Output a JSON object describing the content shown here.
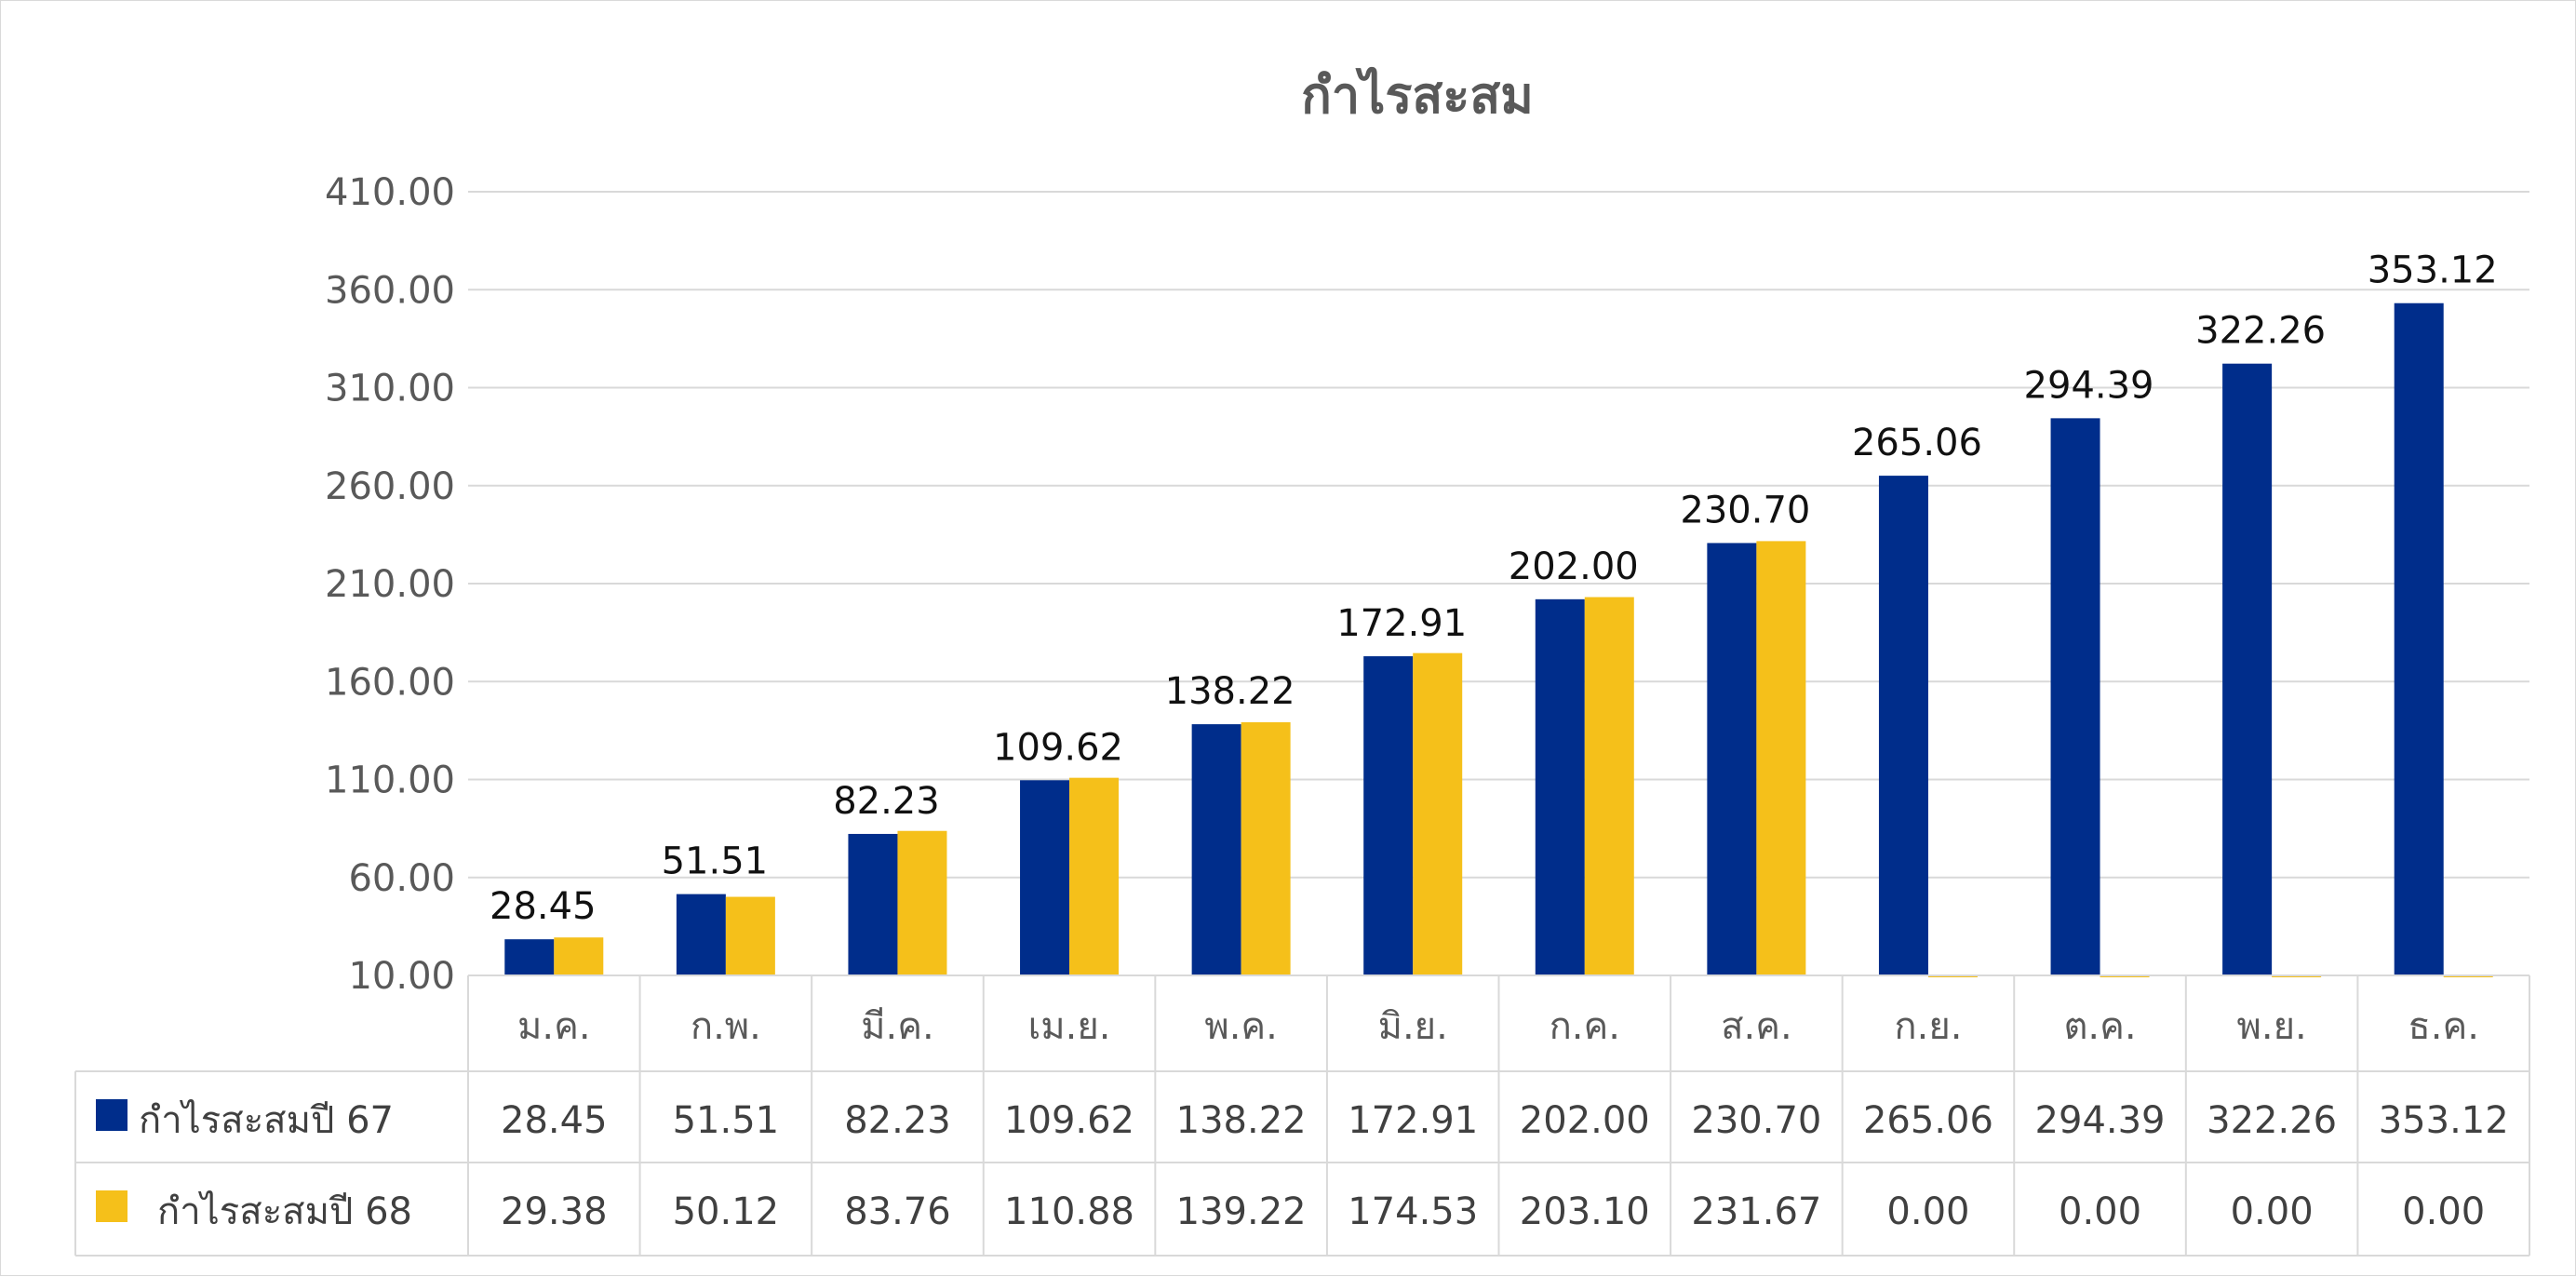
{
  "chart_data": {
    "type": "bar",
    "title": "กำไรสะสม",
    "categories": [
      "ม.ค.",
      "ก.พ.",
      "มี.ค.",
      "เม.ย.",
      "พ.ค.",
      "มิ.ย.",
      "ก.ค.",
      "ส.ค.",
      "ก.ย.",
      "ต.ค.",
      "พ.ย.",
      "ธ.ค."
    ],
    "ylim": [
      10,
      410
    ],
    "yticks": [
      "10.00",
      "60.00",
      "110.00",
      "160.00",
      "210.00",
      "260.00",
      "310.00",
      "360.00",
      "410.00"
    ],
    "yticks_values": [
      10,
      60,
      110,
      160,
      210,
      260,
      310,
      360,
      410
    ],
    "grid": true,
    "legend": "data-table",
    "series": [
      {
        "name": "กำไรสะสมปี 67",
        "color": "#002D8B",
        "values": [
          28.45,
          51.51,
          82.23,
          109.62,
          138.22,
          172.91,
          202.0,
          230.7,
          265.06,
          294.39,
          322.26,
          353.12
        ],
        "labels": [
          "28.45",
          "51.51",
          "82.23",
          "109.62",
          "138.22",
          "172.91",
          "202.00",
          "230.70",
          "265.06",
          "294.39",
          "322.26",
          "353.12"
        ],
        "show_data_labels": true
      },
      {
        "name": "กำไรสะสมปี 68",
        "color": "#F5C01A",
        "values": [
          29.38,
          50.12,
          83.76,
          110.88,
          139.22,
          174.53,
          203.1,
          231.67,
          0.0,
          0.0,
          0.0,
          0.0
        ],
        "labels": [
          "29.38",
          "50.12",
          "83.76",
          "110.88",
          "139.22",
          "174.53",
          "203.10",
          "231.67",
          "0.00",
          "0.00",
          "0.00",
          "0.00"
        ],
        "show_data_labels": false
      }
    ]
  }
}
